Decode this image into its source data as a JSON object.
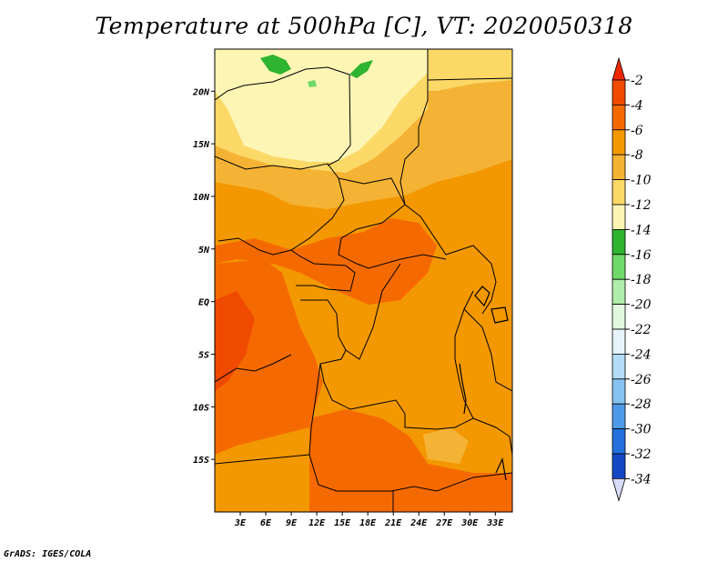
{
  "title": "Temperature at 500hPa [C], VT: 2020050318",
  "credit": "GrADS: IGES/COLA",
  "map": {
    "lon_range": [
      0,
      35
    ],
    "lat_range": [
      -20,
      24
    ],
    "lat_ticks": [
      {
        "value": 20,
        "label": "20N"
      },
      {
        "value": 15,
        "label": "15N"
      },
      {
        "value": 10,
        "label": "10N"
      },
      {
        "value": 5,
        "label": "5N"
      },
      {
        "value": 0,
        "label": "EQ"
      },
      {
        "value": -5,
        "label": "5S"
      },
      {
        "value": -10,
        "label": "10S"
      },
      {
        "value": -15,
        "label": "15S"
      }
    ],
    "lon_ticks": [
      {
        "value": 3,
        "label": "3E"
      },
      {
        "value": 6,
        "label": "6E"
      },
      {
        "value": 9,
        "label": "9E"
      },
      {
        "value": 12,
        "label": "12E"
      },
      {
        "value": 15,
        "label": "15E"
      },
      {
        "value": 18,
        "label": "18E"
      },
      {
        "value": 21,
        "label": "21E"
      },
      {
        "value": 24,
        "label": "24E"
      },
      {
        "value": 27,
        "label": "27E"
      },
      {
        "value": 30,
        "label": "30E"
      },
      {
        "value": 33,
        "label": "33E"
      }
    ]
  },
  "colorbar": {
    "labels": [
      "-2",
      "-4",
      "-6",
      "-8",
      "-10",
      "-12",
      "-14",
      "-16",
      "-18",
      "-20",
      "-22",
      "-24",
      "-26",
      "-28",
      "-30",
      "-32",
      "-34"
    ],
    "colors": [
      "#f04a00",
      "#f56a00",
      "#f39800",
      "#f5b335",
      "#fcd867",
      "#fdf5b4",
      "#2eb42f",
      "#6fd96b",
      "#afedaa",
      "#e1f8de",
      "#e6f3fb",
      "#b4dcf6",
      "#86c2f0",
      "#4f9ae8",
      "#2471de",
      "#1448c4",
      "#0d2aa1",
      "#0d107a"
    ],
    "top_arrow_color": "#f02800",
    "bottom_arrow_color": "#d9dcf7"
  },
  "palette": {
    "warm": "#f56a00",
    "orange": "#f39800",
    "light_orange": "#f5b335",
    "yellow": "#fcd867",
    "pale": "#fdf5b4",
    "green": "#2eb42f"
  }
}
